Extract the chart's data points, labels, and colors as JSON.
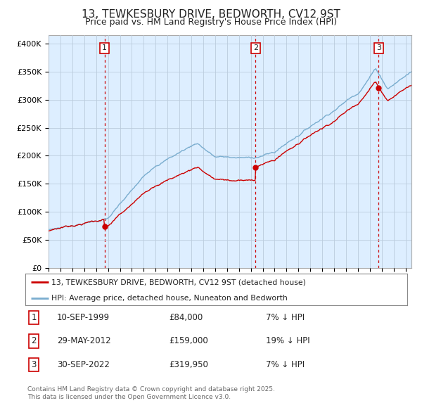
{
  "title": "13, TEWKESBURY DRIVE, BEDWORTH, CV12 9ST",
  "subtitle": "Price paid vs. HM Land Registry's House Price Index (HPI)",
  "ylabel_ticks": [
    "£0",
    "£50K",
    "£100K",
    "£150K",
    "£200K",
    "£250K",
    "£300K",
    "£350K",
    "£400K"
  ],
  "ytick_values": [
    0,
    50000,
    100000,
    150000,
    200000,
    250000,
    300000,
    350000,
    400000
  ],
  "ylim": [
    0,
    415000
  ],
  "xlim_start": 1995.0,
  "xlim_end": 2025.5,
  "sale_color": "#cc0000",
  "hpi_color": "#7aadcf",
  "sale_label": "13, TEWKESBURY DRIVE, BEDWORTH, CV12 9ST (detached house)",
  "hpi_label": "HPI: Average price, detached house, Nuneaton and Bedworth",
  "transactions": [
    {
      "num": 1,
      "date": "10-SEP-1999",
      "price": 84000,
      "pct": "7%",
      "dir": "↓",
      "year": 1999.7
    },
    {
      "num": 2,
      "date": "29-MAY-2012",
      "price": 159000,
      "pct": "19%",
      "dir": "↓",
      "year": 2012.4
    },
    {
      "num": 3,
      "date": "30-SEP-2022",
      "price": 319950,
      "pct": "7%",
      "dir": "↓",
      "year": 2022.75
    }
  ],
  "footnote1": "Contains HM Land Registry data © Crown copyright and database right 2025.",
  "footnote2": "This data is licensed under the Open Government Licence v3.0.",
  "background_color": "#ffffff",
  "chart_bg_color": "#ddeeff",
  "grid_color": "#bbccdd",
  "title_fontsize": 11,
  "subtitle_fontsize": 9
}
